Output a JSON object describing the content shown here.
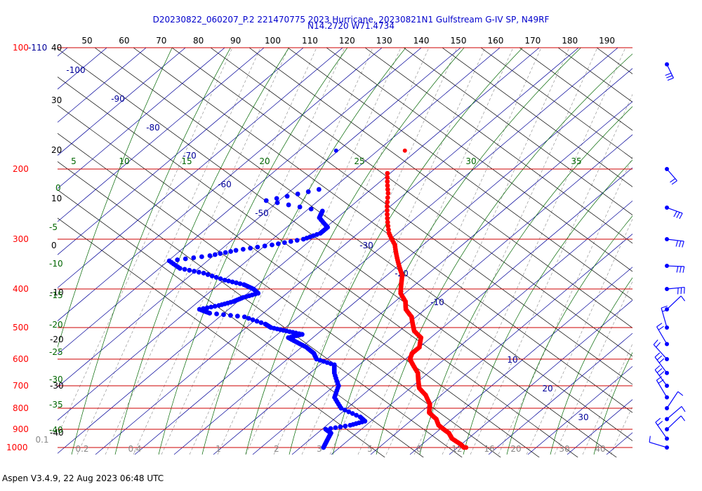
{
  "header": {
    "title_line1": "D20230822_060207_P.2 221470775 2023 Hurricane, 20230821N1 Gulfstream G-IV SP, N49RF",
    "title_line2": "N14.2720 W71.4734"
  },
  "footer": {
    "text": "Aspen V3.4.9, 22 Aug 2023  06:48 UTC"
  },
  "colors": {
    "temperature": "#ff0000",
    "dewpoint": "#0000ff",
    "isobar": "#cc0000",
    "isotherm": "#000099",
    "dry_adiabat": "#000000",
    "moist_adiabat": "#006600",
    "mixing_ratio": "#888888",
    "title": "#0000cc"
  },
  "chart_data": {
    "type": "skew-t",
    "pressure_labels": [
      "100-110",
      "200",
      "300",
      "400",
      "500",
      "600",
      "700",
      "800",
      "900",
      "1000"
    ],
    "pressure_levels": [
      100,
      200,
      300,
      400,
      500,
      600,
      700,
      800,
      900,
      1000
    ],
    "top_axis_ticks": [
      "50",
      "60",
      "70",
      "80",
      "90",
      "100",
      "110",
      "120",
      "130",
      "140",
      "150",
      "160",
      "170",
      "180",
      "190"
    ],
    "left_black_labels": [
      "40",
      "30",
      "20",
      "10",
      "0",
      "-10",
      "-20",
      "-30",
      "-40"
    ],
    "moist_labels": [
      "0",
      "-5",
      "-10",
      "-15",
      "-20",
      "-25",
      "-30",
      "-35",
      "-40"
    ],
    "moist_top_labels": [
      "5",
      "10",
      "15",
      "20",
      "25",
      "30",
      "35"
    ],
    "isotherm_labels": [
      "-100",
      "-90",
      "-80",
      "-70",
      "-60",
      "-50",
      "-30",
      "-20",
      "-10",
      "10",
      "20",
      "30"
    ],
    "mixing_ratio_labels": [
      "0.1",
      "0.2",
      "0.4",
      "1",
      "2",
      "3",
      "5",
      "8",
      "12",
      "16",
      "20",
      "30",
      "40"
    ],
    "temperature": [
      [
        205,
        -56
      ],
      [
        230,
        -51
      ],
      [
        260,
        -46
      ],
      [
        290,
        -41
      ],
      [
        310,
        -37
      ],
      [
        330,
        -34
      ],
      [
        350,
        -31
      ],
      [
        370,
        -28
      ],
      [
        390,
        -26
      ],
      [
        410,
        -24
      ],
      [
        430,
        -21
      ],
      [
        450,
        -19
      ],
      [
        470,
        -16
      ],
      [
        490,
        -14
      ],
      [
        510,
        -12
      ],
      [
        530,
        -9
      ],
      [
        560,
        -7
      ],
      [
        580,
        -7
      ],
      [
        600,
        -6
      ],
      [
        620,
        -4
      ],
      [
        650,
        -1
      ],
      [
        680,
        1
      ],
      [
        710,
        3
      ],
      [
        740,
        6
      ],
      [
        780,
        9
      ],
      [
        800,
        10
      ],
      [
        820,
        11
      ],
      [
        850,
        14
      ],
      [
        880,
        16
      ],
      [
        900,
        18
      ],
      [
        920,
        20
      ],
      [
        950,
        22
      ],
      [
        980,
        25
      ],
      [
        1005,
        27
      ]
    ],
    "dewpoint": [
      [
        225,
        -66
      ],
      [
        240,
        -74
      ],
      [
        255,
        -60
      ],
      [
        265,
        -59
      ],
      [
        280,
        -55
      ],
      [
        290,
        -55
      ],
      [
        300,
        -57
      ],
      [
        310,
        -62
      ],
      [
        320,
        -68
      ],
      [
        330,
        -72
      ],
      [
        340,
        -79
      ],
      [
        355,
        -75
      ],
      [
        365,
        -69
      ],
      [
        380,
        -63
      ],
      [
        390,
        -58
      ],
      [
        400,
        -55
      ],
      [
        410,
        -53
      ],
      [
        420,
        -55
      ],
      [
        430,
        -56
      ],
      [
        440,
        -58
      ],
      [
        450,
        -61
      ],
      [
        460,
        -58
      ],
      [
        470,
        -50
      ],
      [
        490,
        -44
      ],
      [
        500,
        -42
      ],
      [
        510,
        -38
      ],
      [
        520,
        -34
      ],
      [
        530,
        -36
      ],
      [
        545,
        -33
      ],
      [
        560,
        -30
      ],
      [
        580,
        -27
      ],
      [
        600,
        -25
      ],
      [
        620,
        -20
      ],
      [
        650,
        -18
      ],
      [
        700,
        -14
      ],
      [
        750,
        -12
      ],
      [
        800,
        -8
      ],
      [
        840,
        -2
      ],
      [
        860,
        0
      ],
      [
        880,
        -2
      ],
      [
        900,
        -6
      ],
      [
        920,
        -4
      ],
      [
        960,
        -3
      ],
      [
        1000,
        -2
      ]
    ],
    "isolated_points": [
      {
        "series": "dewpoint",
        "p": 180,
        "t": -72
      },
      {
        "series": "temperature",
        "p": 180,
        "t": -58
      }
    ],
    "wind_barbs": [
      {
        "p": 110,
        "u": -10,
        "v": -25
      },
      {
        "p": 200,
        "u": -14,
        "v": -20
      },
      {
        "p": 250,
        "u": -22,
        "v": -12
      },
      {
        "p": 300,
        "u": -28,
        "v": -8
      },
      {
        "p": 350,
        "u": -30,
        "v": -6
      },
      {
        "p": 400,
        "u": -32,
        "v": -2
      },
      {
        "p": 450,
        "u": -8,
        "v": 6
      },
      {
        "p": 500,
        "u": 6,
        "v": 18
      },
      {
        "p": 550,
        "u": 14,
        "v": 20
      },
      {
        "p": 600,
        "u": 18,
        "v": 16
      },
      {
        "p": 650,
        "u": 20,
        "v": 22
      },
      {
        "p": 700,
        "u": 18,
        "v": 20
      },
      {
        "p": 750,
        "u": 10,
        "v": 14
      },
      {
        "p": 800,
        "u": -8,
        "v": 10
      },
      {
        "p": 850,
        "u": -12,
        "v": 8
      },
      {
        "p": 900,
        "u": -8,
        "v": 6
      },
      {
        "p": 950,
        "u": 10,
        "v": 12
      },
      {
        "p": 1000,
        "u": 14,
        "v": 2
      }
    ]
  }
}
